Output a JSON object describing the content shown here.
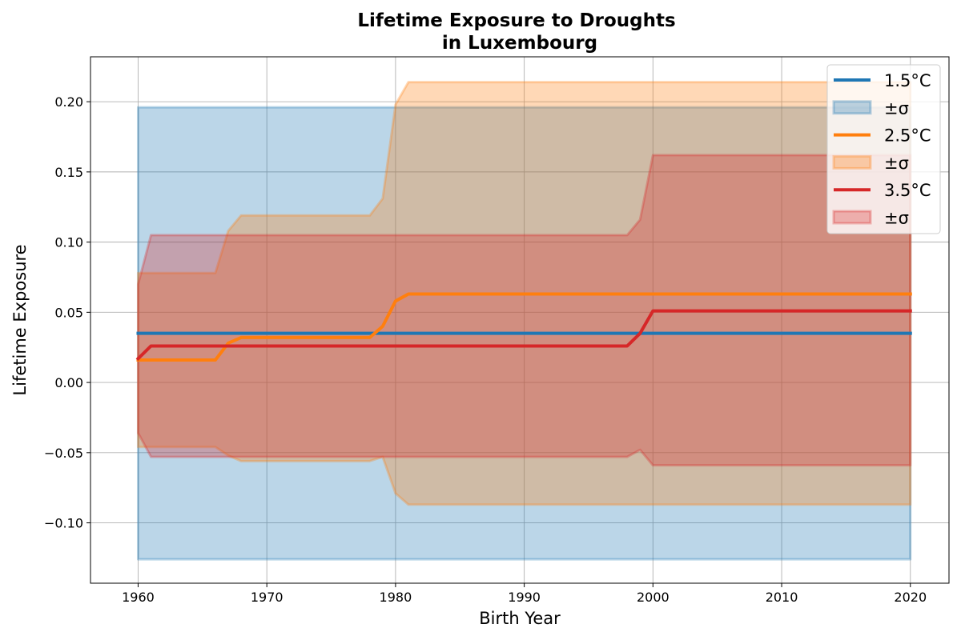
{
  "chart_data": {
    "type": "line",
    "title": "Lifetime Exposure to Droughts",
    "subtitle": "in Luxembourg",
    "xlabel": "Birth Year",
    "ylabel": "Lifetime Exposure",
    "xlim": [
      1956.3,
      2023.0
    ],
    "ylim": [
      -0.143,
      0.232
    ],
    "xticks": [
      1960,
      1970,
      1980,
      1990,
      2000,
      2010,
      2020
    ],
    "xtick_labels": [
      "1960",
      "1970",
      "1980",
      "1990",
      "2000",
      "2010",
      "2020"
    ],
    "yticks": [
      -0.1,
      -0.05,
      0.0,
      0.05,
      0.1,
      0.15,
      0.2
    ],
    "ytick_labels": [
      "−0.10",
      "−0.05",
      "0.00",
      "0.05",
      "0.10",
      "0.15",
      "0.20"
    ],
    "grid": true,
    "legend_position": "top-right",
    "series": [
      {
        "name": "1.5°C",
        "band_label": "±σ",
        "color": "#1f77b4",
        "x": [
          1960,
          2020
        ],
        "y": [
          0.035,
          0.035
        ],
        "upper": [
          0.196,
          0.196
        ],
        "lower": [
          -0.126,
          -0.126
        ]
      },
      {
        "name": "2.5°C",
        "band_label": "±σ",
        "color": "#ff7f0e",
        "x": [
          1960,
          1966,
          1967,
          1968,
          1978,
          1979,
          1980,
          1981,
          2020
        ],
        "y": [
          0.016,
          0.016,
          0.028,
          0.032,
          0.032,
          0.04,
          0.058,
          0.063,
          0.063
        ],
        "upper": [
          0.078,
          0.078,
          0.108,
          0.119,
          0.119,
          0.131,
          0.198,
          0.214,
          0.214
        ],
        "lower": [
          -0.046,
          -0.046,
          -0.052,
          -0.056,
          -0.056,
          -0.053,
          -0.079,
          -0.087,
          -0.087
        ]
      },
      {
        "name": "3.5°C",
        "band_label": "±σ",
        "color": "#d62728",
        "x": [
          1960,
          1961,
          1998,
          1999,
          2000,
          2020
        ],
        "y": [
          0.017,
          0.026,
          0.026,
          0.035,
          0.051,
          0.051
        ],
        "upper": [
          0.07,
          0.105,
          0.105,
          0.116,
          0.162,
          0.162
        ],
        "lower": [
          -0.036,
          -0.053,
          -0.053,
          -0.048,
          -0.059,
          -0.059
        ]
      }
    ]
  }
}
